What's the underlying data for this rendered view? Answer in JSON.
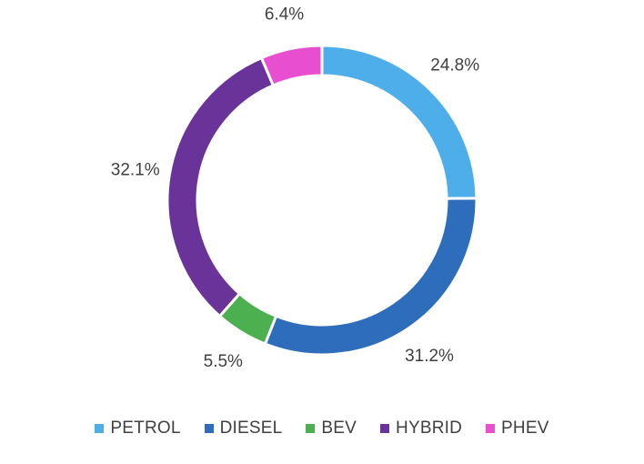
{
  "chart_data": {
    "type": "pie",
    "variant": "doughnut",
    "categories": [
      "PETROL",
      "DIESEL",
      "BEV",
      "HYBRID",
      "PHEV"
    ],
    "values": [
      24.8,
      31.2,
      5.5,
      32.1,
      6.4
    ],
    "data_labels": [
      "24.8%",
      "31.2%",
      "5.5%",
      "32.1%",
      "6.4%"
    ],
    "colors": [
      "#4eaeea",
      "#2e6cbc",
      "#4caf50",
      "#6a3399",
      "#e84fd0"
    ],
    "title": "",
    "legend_placement": "bottom"
  }
}
